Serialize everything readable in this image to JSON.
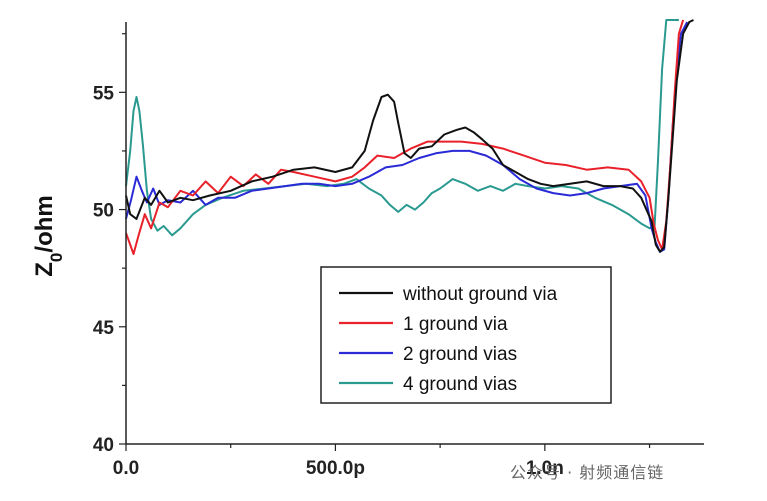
{
  "chart_data": {
    "type": "line",
    "xlabel": "",
    "ylabel": "Z0/ohm",
    "ylabel_main": "Z",
    "ylabel_sub": "0",
    "ylabel_unit": "/ohm",
    "xlim": [
      0,
      1380
    ],
    "ylim": [
      40,
      58
    ],
    "x_ticks": [
      {
        "value": 0,
        "label": "0.0"
      },
      {
        "value": 500,
        "label": "500.0p"
      },
      {
        "value": 1000,
        "label": "1.0n"
      }
    ],
    "y_ticks": [
      {
        "value": 40,
        "label": "40"
      },
      {
        "value": 45,
        "label": "45"
      },
      {
        "value": 50,
        "label": "50"
      },
      {
        "value": 55,
        "label": "55"
      }
    ],
    "legend_position": "lower-right",
    "series": [
      {
        "name": "without ground via",
        "color": "#111111",
        "x": [
          0,
          10,
          25,
          45,
          60,
          80,
          100,
          130,
          160,
          200,
          250,
          300,
          350,
          400,
          450,
          500,
          540,
          570,
          590,
          610,
          625,
          640,
          650,
          665,
          680,
          700,
          730,
          760,
          790,
          810,
          830,
          850,
          875,
          900,
          930,
          960,
          990,
          1020,
          1060,
          1100,
          1140,
          1180,
          1210,
          1230,
          1255,
          1265,
          1275,
          1285,
          1295,
          1305,
          1315,
          1330,
          1345,
          1355
        ],
        "y": [
          50.6,
          49.8,
          49.6,
          50.5,
          50.2,
          50.8,
          50.3,
          50.5,
          50.4,
          50.6,
          50.8,
          51.2,
          51.4,
          51.7,
          51.8,
          51.6,
          51.8,
          52.5,
          53.8,
          54.8,
          54.9,
          54.6,
          53.7,
          52.4,
          52.2,
          52.6,
          52.7,
          53.2,
          53.4,
          53.5,
          53.3,
          53.0,
          52.6,
          51.9,
          51.6,
          51.3,
          51.1,
          51.0,
          51.1,
          51.2,
          51.0,
          51.0,
          50.9,
          50.5,
          49.5,
          48.5,
          48.2,
          48.4,
          50.5,
          53.0,
          55.5,
          57.5,
          58.0,
          58.2
        ]
      },
      {
        "name": "1 ground via",
        "color": "#e8212a",
        "x": [
          0,
          8,
          18,
          30,
          45,
          60,
          80,
          100,
          130,
          160,
          190,
          220,
          250,
          280,
          310,
          340,
          370,
          400,
          450,
          500,
          540,
          570,
          600,
          640,
          680,
          720,
          760,
          800,
          850,
          900,
          950,
          1000,
          1050,
          1100,
          1150,
          1200,
          1230,
          1250,
          1260,
          1270,
          1280,
          1290,
          1300,
          1310,
          1320,
          1330
        ],
        "y": [
          49.0,
          48.6,
          48.1,
          48.9,
          49.8,
          49.2,
          50.3,
          50.1,
          50.8,
          50.6,
          51.2,
          50.7,
          51.4,
          51.0,
          51.5,
          51.1,
          51.7,
          51.6,
          51.4,
          51.2,
          51.4,
          51.8,
          52.3,
          52.2,
          52.6,
          52.9,
          52.9,
          52.9,
          52.8,
          52.6,
          52.3,
          52.0,
          51.9,
          51.7,
          51.8,
          51.7,
          51.2,
          50.5,
          49.4,
          48.7,
          48.3,
          49.5,
          52.0,
          55.0,
          57.5,
          58.1
        ]
      },
      {
        "name": "2 ground vias",
        "color": "#2a2ad6",
        "x": [
          0,
          12,
          25,
          38,
          50,
          65,
          80,
          100,
          130,
          160,
          190,
          220,
          260,
          300,
          340,
          380,
          420,
          460,
          500,
          540,
          580,
          620,
          660,
          700,
          740,
          780,
          820,
          860,
          900,
          940,
          980,
          1020,
          1060,
          1100,
          1140,
          1180,
          1220,
          1240,
          1255,
          1265,
          1275,
          1285,
          1295,
          1305,
          1315,
          1325,
          1340
        ],
        "y": [
          49.6,
          50.4,
          51.4,
          50.8,
          50.3,
          50.9,
          50.2,
          50.4,
          50.3,
          50.8,
          50.2,
          50.5,
          50.5,
          50.8,
          50.9,
          51.0,
          51.1,
          51.1,
          51.0,
          51.1,
          51.4,
          51.8,
          51.9,
          52.2,
          52.4,
          52.5,
          52.5,
          52.3,
          51.9,
          51.3,
          50.9,
          50.7,
          50.6,
          50.7,
          50.9,
          51.0,
          51.1,
          50.6,
          49.2,
          48.6,
          48.2,
          48.3,
          50.5,
          53.5,
          56.0,
          57.5,
          58.0
        ]
      },
      {
        "name": "4 ground vias",
        "color": "#2a9a90",
        "x": [
          0,
          10,
          18,
          25,
          32,
          40,
          50,
          60,
          75,
          90,
          110,
          130,
          160,
          190,
          230,
          280,
          330,
          380,
          430,
          480,
          520,
          550,
          580,
          610,
          630,
          650,
          670,
          690,
          710,
          730,
          750,
          780,
          810,
          840,
          870,
          900,
          930,
          960,
          1000,
          1040,
          1080,
          1120,
          1160,
          1200,
          1230,
          1250,
          1262,
          1270,
          1280,
          1290,
          1300,
          1310,
          1320
        ],
        "y": [
          51.0,
          52.5,
          54.2,
          54.8,
          54.2,
          52.8,
          50.8,
          49.6,
          49.1,
          49.3,
          48.9,
          49.2,
          49.8,
          50.2,
          50.5,
          50.8,
          50.9,
          51.0,
          51.1,
          51.0,
          51.1,
          51.3,
          50.9,
          50.6,
          50.2,
          49.9,
          50.2,
          50.0,
          50.3,
          50.7,
          50.9,
          51.3,
          51.1,
          50.8,
          51.0,
          50.8,
          51.1,
          51.0,
          50.9,
          51.0,
          50.9,
          50.5,
          50.2,
          49.8,
          49.4,
          49.2,
          49.3,
          52.0,
          56.0,
          58.2,
          58.4,
          58.4,
          58.4
        ]
      }
    ],
    "watermark": "公众号 · 射频通信链"
  }
}
